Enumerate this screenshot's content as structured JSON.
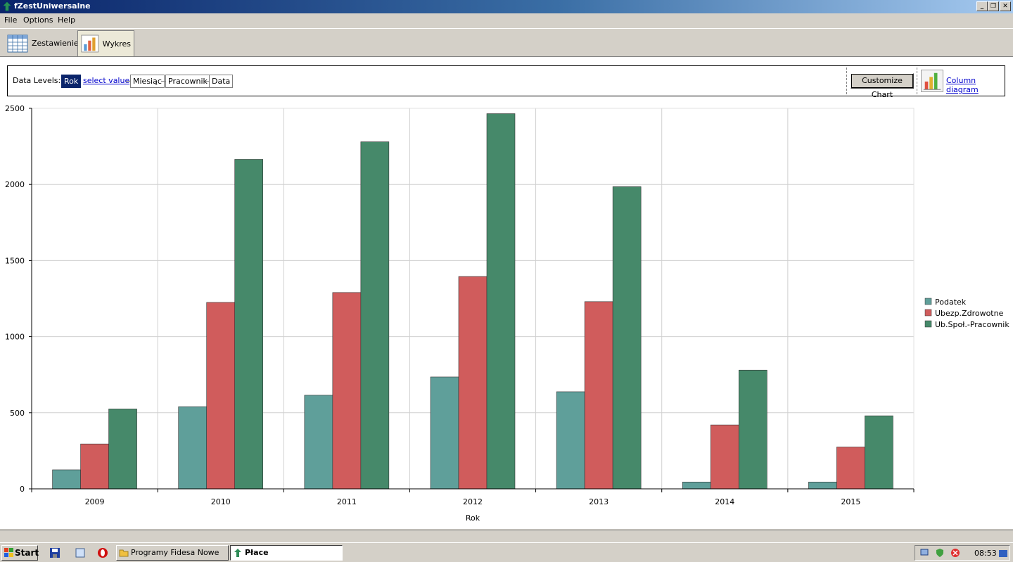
{
  "window": {
    "title": "fZestUniwersalne",
    "controls": [
      "_",
      "❐",
      "✕"
    ]
  },
  "menu": [
    "File",
    "Options",
    "Help"
  ],
  "tabs": [
    {
      "label": "Zestawienie",
      "icon": "table-icon"
    },
    {
      "label": "Wykres",
      "icon": "bar-chart-icon",
      "active": true
    }
  ],
  "levels": {
    "label": "Data Levels:",
    "items": [
      "Rok",
      "select value",
      "Miesiąc",
      "Pracownik",
      "Data"
    ],
    "customize": "Customize Chart",
    "diagram": "Column diagram"
  },
  "chart_data": {
    "type": "bar",
    "categories": [
      "2009",
      "2010",
      "2011",
      "2012",
      "2013",
      "2014",
      "2015"
    ],
    "series": [
      {
        "name": "Podatek",
        "color": "#5f9f9a",
        "values": [
          125,
          540,
          615,
          735,
          638,
          45,
          45
        ]
      },
      {
        "name": "Ubezp.Zdrowotne",
        "color": "#d05c5c",
        "values": [
          295,
          1225,
          1290,
          1395,
          1230,
          420,
          275
        ]
      },
      {
        "name": "Ub.Społ.-Pracownik",
        "color": "#46896a",
        "values": [
          525,
          2165,
          2280,
          2465,
          1985,
          780,
          480
        ]
      }
    ],
    "xlabel": "Rok",
    "ylabel": "",
    "ylim": [
      0,
      2500
    ],
    "yticks": [
      "0",
      "500",
      "1000",
      "1500",
      "2000",
      "2500"
    ],
    "grid": true,
    "legend": "right"
  },
  "taskbar": {
    "start": "Start",
    "buttons": [
      "Programy Fidesa Nowe",
      "Płace"
    ],
    "clock": "08:53"
  }
}
